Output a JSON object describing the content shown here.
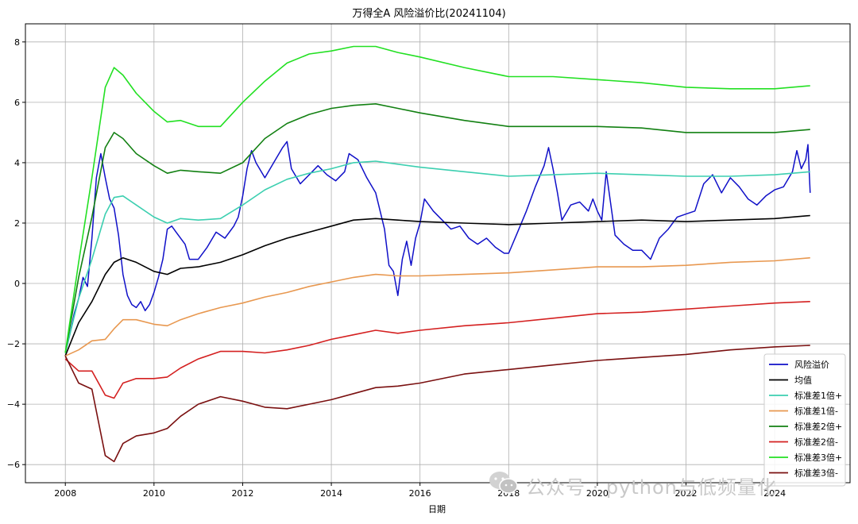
{
  "chart_data": {
    "type": "line",
    "title": "万得全A 风险溢价比(20241104)",
    "xlabel": "日期",
    "ylabel": "",
    "xlim": [
      2007.1,
      2025.7
    ],
    "ylim": [
      -6.6,
      8.6
    ],
    "x_ticks": [
      2008,
      2010,
      2012,
      2014,
      2016,
      2018,
      2020,
      2022,
      2024
    ],
    "x_tick_labels": [
      "2008",
      "2010",
      "2012",
      "2014",
      "2016",
      "2018",
      "2020",
      "2022",
      "2024"
    ],
    "y_ticks": [
      -6,
      -4,
      -2,
      0,
      2,
      4,
      6,
      8
    ],
    "y_tick_labels": [
      "−6",
      "−4",
      "−2",
      "0",
      "2",
      "4",
      "6",
      "8"
    ],
    "grid": true,
    "legend_position": "lower-right",
    "series": [
      {
        "name": "风险溢价",
        "color": "#1010c8",
        "x": [
          2008.0,
          2008.1,
          2008.2,
          2008.3,
          2008.4,
          2008.5,
          2008.6,
          2008.7,
          2008.8,
          2008.9,
          2009.0,
          2009.1,
          2009.2,
          2009.3,
          2009.4,
          2009.5,
          2009.6,
          2009.7,
          2009.8,
          2009.9,
          2010.0,
          2010.1,
          2010.2,
          2010.3,
          2010.4,
          2010.5,
          2010.7,
          2010.8,
          2011.0,
          2011.2,
          2011.4,
          2011.6,
          2011.8,
          2011.9,
          2012.0,
          2012.1,
          2012.2,
          2012.3,
          2012.5,
          2012.7,
          2012.9,
          2013.0,
          2013.1,
          2013.3,
          2013.5,
          2013.7,
          2013.9,
          2014.1,
          2014.3,
          2014.4,
          2014.6,
          2014.8,
          2015.0,
          2015.2,
          2015.3,
          2015.4,
          2015.5,
          2015.6,
          2015.7,
          2015.8,
          2015.9,
          2016.0,
          2016.1,
          2016.3,
          2016.5,
          2016.7,
          2016.9,
          2017.1,
          2017.3,
          2017.5,
          2017.7,
          2017.9,
          2018.0,
          2018.2,
          2018.4,
          2018.6,
          2018.8,
          2018.9,
          2019.0,
          2019.1,
          2019.2,
          2019.4,
          2019.6,
          2019.8,
          2019.9,
          2020.0,
          2020.1,
          2020.2,
          2020.4,
          2020.6,
          2020.8,
          2021.0,
          2021.2,
          2021.4,
          2021.6,
          2021.8,
          2022.0,
          2022.2,
          2022.4,
          2022.6,
          2022.8,
          2023.0,
          2023.2,
          2023.4,
          2023.6,
          2023.8,
          2024.0,
          2024.2,
          2024.4,
          2024.5,
          2024.6,
          2024.7,
          2024.75,
          2024.8
        ],
        "values": [
          -2.3,
          -1.7,
          -1.0,
          -0.5,
          0.2,
          -0.1,
          1.5,
          3.5,
          4.3,
          3.5,
          2.8,
          2.5,
          1.6,
          0.3,
          -0.4,
          -0.7,
          -0.8,
          -0.6,
          -0.9,
          -0.7,
          -0.3,
          0.2,
          0.8,
          1.8,
          1.9,
          1.7,
          1.3,
          0.8,
          0.8,
          1.2,
          1.7,
          1.5,
          1.9,
          2.2,
          2.9,
          3.8,
          4.4,
          4.0,
          3.5,
          4.0,
          4.5,
          4.7,
          3.8,
          3.3,
          3.6,
          3.9,
          3.6,
          3.4,
          3.7,
          4.3,
          4.1,
          3.5,
          3.0,
          1.8,
          0.6,
          0.4,
          -0.4,
          0.8,
          1.4,
          0.6,
          1.5,
          2.0,
          2.8,
          2.4,
          2.1,
          1.8,
          1.9,
          1.5,
          1.3,
          1.5,
          1.2,
          1.0,
          1.0,
          1.7,
          2.4,
          3.2,
          3.9,
          4.5,
          3.8,
          3.0,
          2.1,
          2.6,
          2.7,
          2.4,
          2.8,
          2.4,
          2.1,
          3.7,
          1.6,
          1.3,
          1.1,
          1.1,
          0.8,
          1.5,
          1.8,
          2.2,
          2.3,
          2.4,
          3.3,
          3.6,
          3.0,
          3.5,
          3.2,
          2.8,
          2.6,
          2.9,
          3.1,
          3.2,
          3.7,
          4.4,
          3.8,
          4.1,
          4.6,
          3.0
        ]
      },
      {
        "name": "均值",
        "color": "#000000",
        "x": [
          2008.0,
          2008.3,
          2008.6,
          2008.9,
          2009.1,
          2009.3,
          2009.6,
          2010.0,
          2010.3,
          2010.6,
          2011.0,
          2011.5,
          2012.0,
          2012.5,
          2013.0,
          2013.5,
          2014.0,
          2014.5,
          2015.0,
          2015.5,
          2016.0,
          2017.0,
          2018.0,
          2019.0,
          2020.0,
          2021.0,
          2022.0,
          2023.0,
          2024.0,
          2024.8
        ],
        "values": [
          -2.4,
          -1.3,
          -0.6,
          0.3,
          0.7,
          0.85,
          0.7,
          0.4,
          0.3,
          0.5,
          0.55,
          0.7,
          0.95,
          1.25,
          1.5,
          1.7,
          1.9,
          2.1,
          2.15,
          2.1,
          2.05,
          2.0,
          1.95,
          2.0,
          2.05,
          2.1,
          2.05,
          2.1,
          2.15,
          2.25
        ]
      },
      {
        "name": "标准差1倍+",
        "color": "#3ccfb0",
        "x": [
          2008.0,
          2008.3,
          2008.6,
          2008.9,
          2009.1,
          2009.3,
          2009.6,
          2010.0,
          2010.3,
          2010.6,
          2011.0,
          2011.5,
          2012.0,
          2012.5,
          2013.0,
          2013.5,
          2014.0,
          2014.5,
          2015.0,
          2015.5,
          2016.0,
          2017.0,
          2018.0,
          2019.0,
          2020.0,
          2021.0,
          2022.0,
          2023.0,
          2024.0,
          2024.8
        ],
        "values": [
          -2.3,
          -0.5,
          0.8,
          2.3,
          2.85,
          2.9,
          2.6,
          2.2,
          2.0,
          2.15,
          2.1,
          2.15,
          2.6,
          3.1,
          3.45,
          3.65,
          3.8,
          4.0,
          4.05,
          3.95,
          3.85,
          3.7,
          3.55,
          3.6,
          3.65,
          3.6,
          3.55,
          3.55,
          3.6,
          3.7
        ]
      },
      {
        "name": "标准差1倍-",
        "color": "#e89850",
        "x": [
          2008.0,
          2008.3,
          2008.6,
          2008.9,
          2009.1,
          2009.3,
          2009.6,
          2010.0,
          2010.3,
          2010.6,
          2011.0,
          2011.5,
          2012.0,
          2012.5,
          2013.0,
          2013.5,
          2014.0,
          2014.5,
          2015.0,
          2015.5,
          2016.0,
          2017.0,
          2018.0,
          2019.0,
          2020.0,
          2021.0,
          2022.0,
          2023.0,
          2024.0,
          2024.8
        ],
        "values": [
          -2.4,
          -2.2,
          -1.9,
          -1.85,
          -1.5,
          -1.2,
          -1.2,
          -1.35,
          -1.4,
          -1.2,
          -1.0,
          -0.8,
          -0.65,
          -0.45,
          -0.3,
          -0.1,
          0.05,
          0.2,
          0.3,
          0.25,
          0.25,
          0.3,
          0.35,
          0.45,
          0.55,
          0.55,
          0.6,
          0.7,
          0.75,
          0.85
        ]
      },
      {
        "name": "标准差2倍+",
        "color": "#128012",
        "x": [
          2008.0,
          2008.3,
          2008.6,
          2008.9,
          2009.1,
          2009.3,
          2009.6,
          2010.0,
          2010.3,
          2010.6,
          2011.0,
          2011.5,
          2012.0,
          2012.5,
          2013.0,
          2013.5,
          2014.0,
          2014.5,
          2015.0,
          2015.5,
          2016.0,
          2017.0,
          2018.0,
          2019.0,
          2020.0,
          2021.0,
          2022.0,
          2023.0,
          2024.0,
          2024.8
        ],
        "values": [
          -2.3,
          0.2,
          2.2,
          4.5,
          5.0,
          4.8,
          4.3,
          3.9,
          3.65,
          3.75,
          3.7,
          3.65,
          4.0,
          4.8,
          5.3,
          5.6,
          5.8,
          5.9,
          5.95,
          5.8,
          5.65,
          5.4,
          5.2,
          5.2,
          5.2,
          5.15,
          5.0,
          5.0,
          5.0,
          5.1
        ]
      },
      {
        "name": "标准差2倍-",
        "color": "#d42020",
        "x": [
          2008.0,
          2008.3,
          2008.6,
          2008.9,
          2009.1,
          2009.3,
          2009.6,
          2010.0,
          2010.3,
          2010.6,
          2011.0,
          2011.5,
          2012.0,
          2012.5,
          2013.0,
          2013.5,
          2014.0,
          2014.5,
          2015.0,
          2015.5,
          2016.0,
          2017.0,
          2018.0,
          2019.0,
          2020.0,
          2021.0,
          2022.0,
          2023.0,
          2024.0,
          2024.8
        ],
        "values": [
          -2.5,
          -2.9,
          -2.9,
          -3.7,
          -3.8,
          -3.3,
          -3.15,
          -3.15,
          -3.1,
          -2.8,
          -2.5,
          -2.25,
          -2.25,
          -2.3,
          -2.2,
          -2.05,
          -1.85,
          -1.7,
          -1.55,
          -1.65,
          -1.55,
          -1.4,
          -1.3,
          -1.15,
          -1.0,
          -0.95,
          -0.85,
          -0.75,
          -0.65,
          -0.6
        ]
      },
      {
        "name": "标准差3倍+",
        "color": "#22e022",
        "x": [
          2008.0,
          2008.3,
          2008.6,
          2008.9,
          2009.1,
          2009.3,
          2009.6,
          2010.0,
          2010.3,
          2010.6,
          2011.0,
          2011.5,
          2012.0,
          2012.5,
          2013.0,
          2013.5,
          2014.0,
          2014.5,
          2015.0,
          2015.5,
          2016.0,
          2017.0,
          2018.0,
          2019.0,
          2020.0,
          2021.0,
          2022.0,
          2023.0,
          2024.0,
          2024.8
        ],
        "values": [
          -2.3,
          0.7,
          3.5,
          6.5,
          7.15,
          6.9,
          6.3,
          5.7,
          5.35,
          5.4,
          5.2,
          5.2,
          6.0,
          6.7,
          7.3,
          7.6,
          7.7,
          7.85,
          7.85,
          7.65,
          7.5,
          7.15,
          6.85,
          6.85,
          6.75,
          6.65,
          6.5,
          6.45,
          6.45,
          6.55
        ]
      },
      {
        "name": "标准差3倍-",
        "color": "#7a1010",
        "x": [
          2008.0,
          2008.3,
          2008.6,
          2008.9,
          2009.1,
          2009.3,
          2009.6,
          2010.0,
          2010.3,
          2010.6,
          2011.0,
          2011.5,
          2012.0,
          2012.5,
          2013.0,
          2013.5,
          2014.0,
          2014.5,
          2015.0,
          2015.5,
          2016.0,
          2017.0,
          2018.0,
          2019.0,
          2020.0,
          2021.0,
          2022.0,
          2023.0,
          2024.0,
          2024.8
        ],
        "values": [
          -2.4,
          -3.3,
          -3.5,
          -5.7,
          -5.9,
          -5.3,
          -5.05,
          -4.95,
          -4.8,
          -4.4,
          -4.0,
          -3.75,
          -3.9,
          -4.1,
          -4.15,
          -4.0,
          -3.85,
          -3.65,
          -3.45,
          -3.4,
          -3.3,
          -3.0,
          -2.85,
          -2.7,
          -2.55,
          -2.45,
          -2.35,
          -2.2,
          -2.1,
          -2.05
        ]
      }
    ]
  },
  "watermark": {
    "text": "公众号 · python与低频量化"
  }
}
